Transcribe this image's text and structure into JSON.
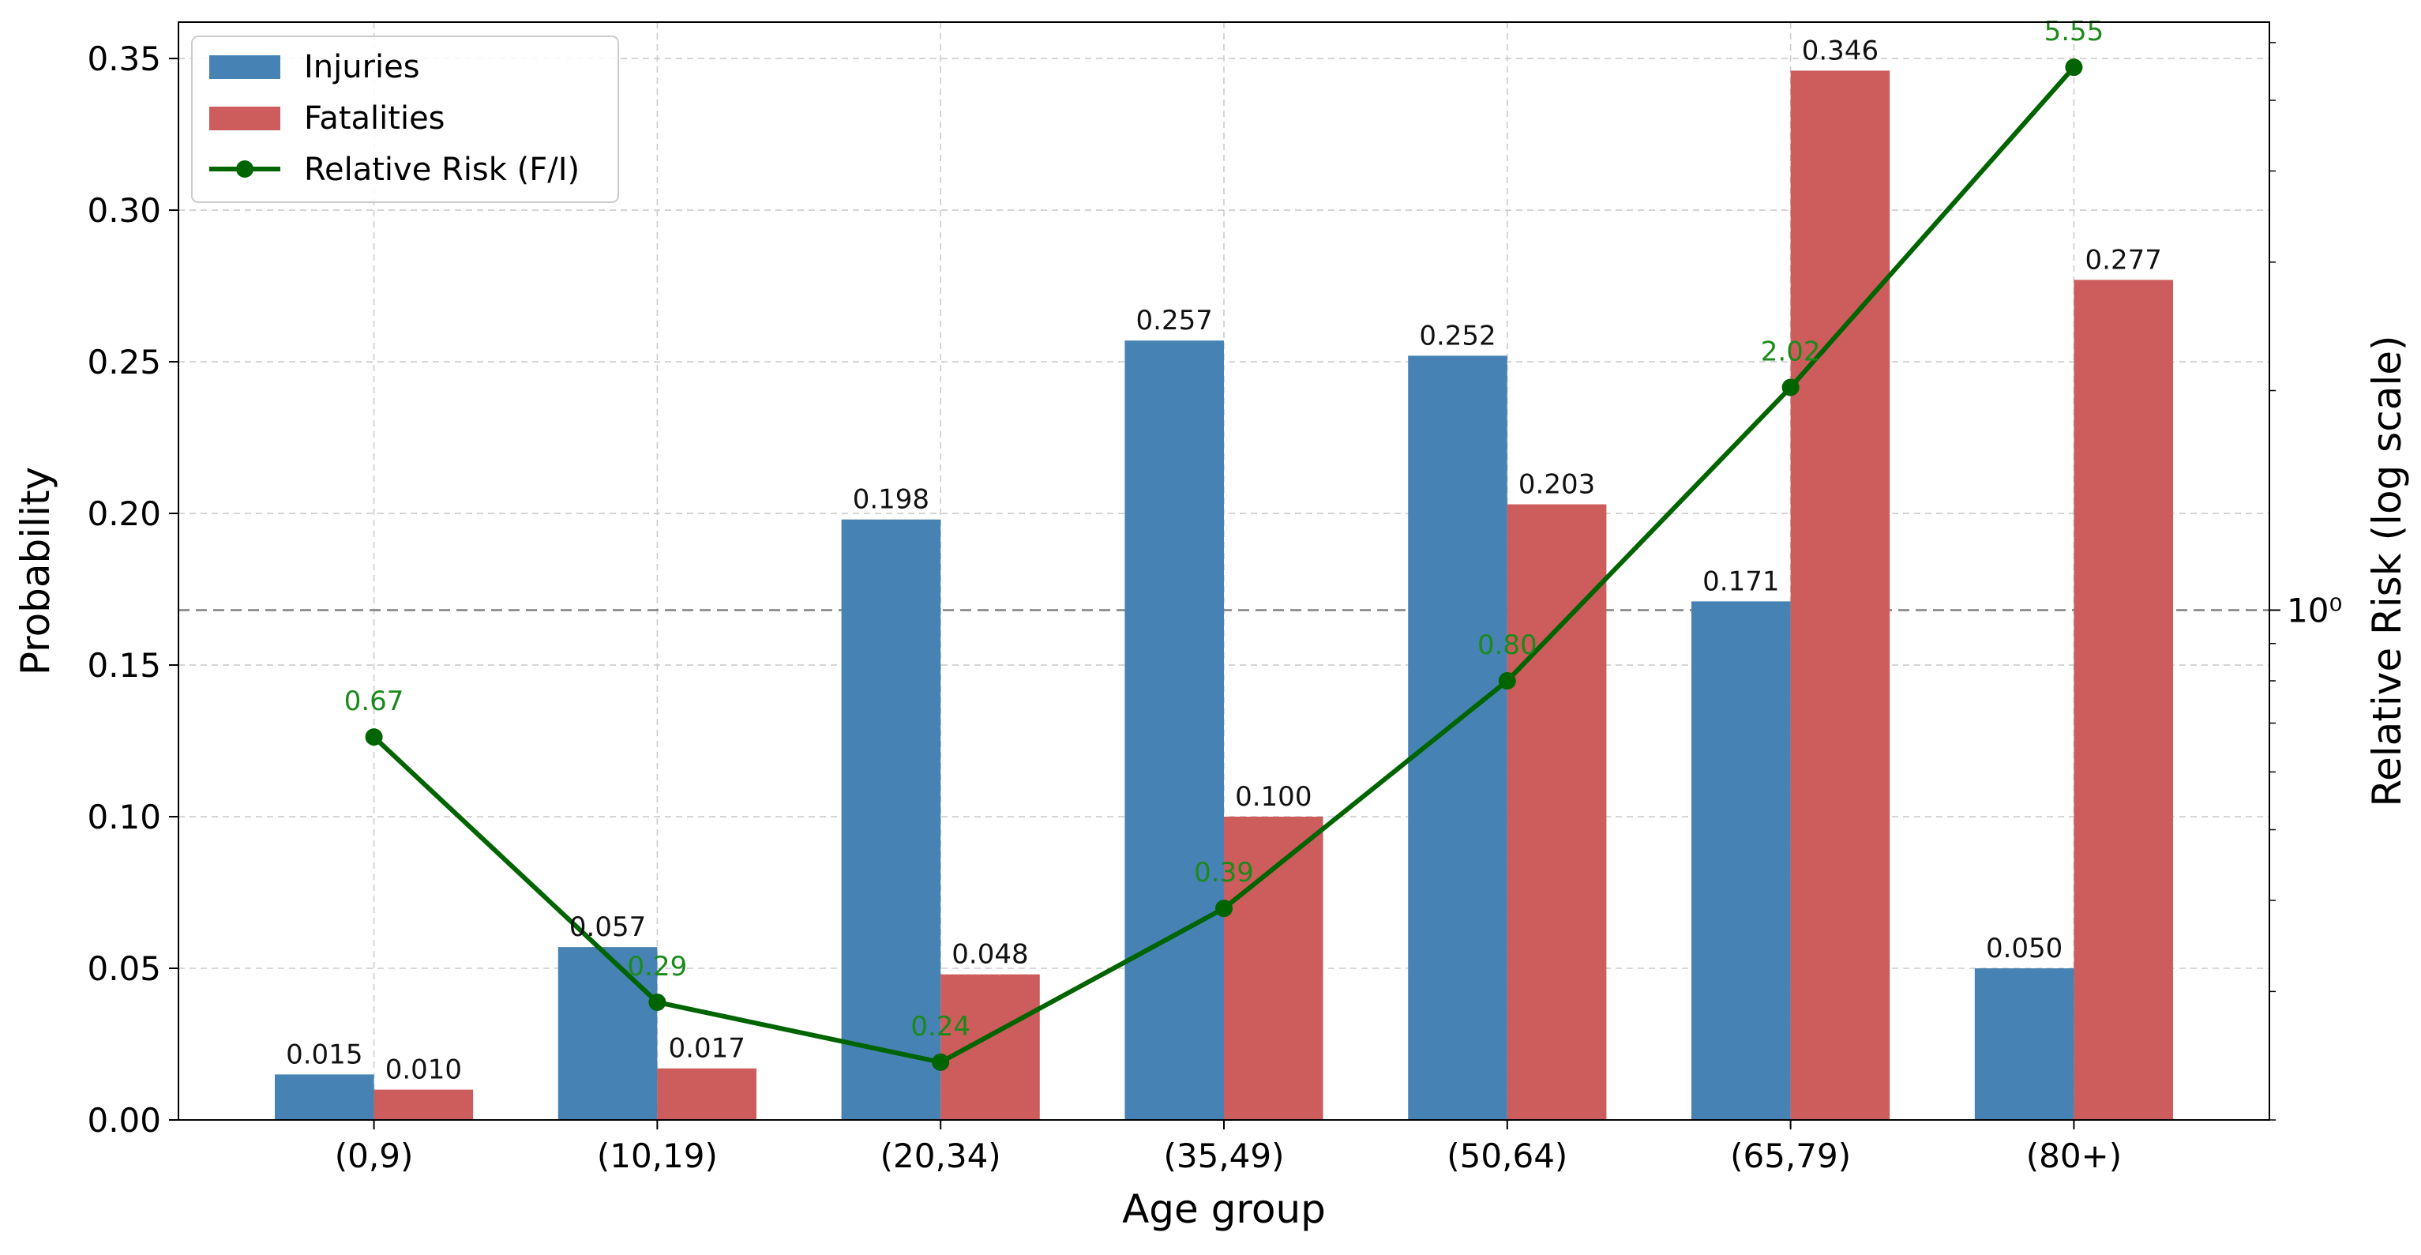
{
  "chart_data": {
    "type": "bar",
    "title": "",
    "xlabel": "Age group",
    "ylabel": "Probability",
    "ylabel_right": "Relative Risk (log scale)",
    "ylim": [
      0,
      0.362
    ],
    "yticks": [
      0.0,
      0.05,
      0.1,
      0.15,
      0.2,
      0.25,
      0.3,
      0.35
    ],
    "ytick_labels": [
      "0.00",
      "0.05",
      "0.10",
      "0.15",
      "0.20",
      "0.25",
      "0.30",
      "0.35"
    ],
    "y2_scale": "log",
    "y2_lim": [
      0.2,
      6.4
    ],
    "y2_tick_label": "10⁰",
    "reference_line": {
      "axis": "y2",
      "value": 1,
      "style": "dashed"
    },
    "grid": true,
    "legend_position": "top-left",
    "categories": [
      "(0,9)",
      "(10,19)",
      "(20,34)",
      "(35,49)",
      "(50,64)",
      "(65,79)",
      "(80+)"
    ],
    "series": [
      {
        "name": "Injuries",
        "kind": "bar",
        "color": "#4682b4",
        "values": [
          0.015,
          0.057,
          0.198,
          0.257,
          0.252,
          0.171,
          0.05
        ],
        "labels": [
          "0.015",
          "0.057",
          "0.198",
          "0.257",
          "0.252",
          "0.171",
          "0.050"
        ]
      },
      {
        "name": "Fatalities",
        "kind": "bar",
        "color": "#cd5c5c",
        "values": [
          0.01,
          0.017,
          0.048,
          0.1,
          0.203,
          0.346,
          0.277
        ],
        "labels": [
          "0.010",
          "0.017",
          "0.048",
          "0.100",
          "0.203",
          "0.346",
          "0.277"
        ]
      },
      {
        "name": "Relative Risk (F/I)",
        "kind": "line",
        "axis": "y2",
        "color": "#006400",
        "values": [
          0.67,
          0.29,
          0.24,
          0.39,
          0.8,
          2.02,
          5.55
        ],
        "labels": [
          "0.67",
          "0.29",
          "0.24",
          "0.39",
          "0.80",
          "2.02",
          "5.55"
        ]
      }
    ]
  }
}
